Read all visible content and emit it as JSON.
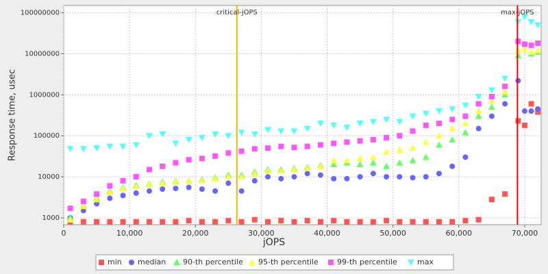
{
  "chart_data": {
    "type": "scatter",
    "xlabel": "jOPS",
    "ylabel": "Response time, usec",
    "log_y": true,
    "grid": true,
    "legend": "bottom",
    "x": [
      1000,
      3000,
      5000,
      7000,
      9000,
      11000,
      13000,
      15000,
      17000,
      19000,
      21000,
      23000,
      25000,
      27000,
      29000,
      31000,
      33000,
      35000,
      37000,
      39000,
      41000,
      43000,
      45000,
      47000,
      49000,
      51000,
      53000,
      55000,
      57000,
      59000,
      61000,
      63000,
      65000,
      67000,
      69000,
      70000,
      71000,
      72000
    ],
    "series": [
      {
        "name": "min",
        "color": "#ff5555",
        "marker": "square",
        "values": [
          800,
          800,
          800,
          800,
          800,
          800,
          800,
          800,
          800,
          850,
          800,
          800,
          850,
          800,
          900,
          800,
          850,
          800,
          850,
          800,
          850,
          800,
          800,
          800,
          850,
          800,
          800,
          800,
          800,
          800,
          850,
          900,
          2800,
          3800,
          230000,
          180000,
          600000,
          380000
        ]
      },
      {
        "name": "median",
        "color": "#6666ff",
        "marker": "circle",
        "values": [
          1000,
          1500,
          2200,
          3000,
          3500,
          4000,
          4500,
          5000,
          5200,
          5500,
          5000,
          4500,
          7000,
          4500,
          8000,
          10000,
          9000,
          10000,
          12000,
          11000,
          9000,
          9000,
          10000,
          12000,
          10000,
          10000,
          9500,
          10000,
          12000,
          18000,
          30000,
          150000,
          300000,
          600000,
          2200000,
          400000,
          400000,
          450000
        ]
      },
      {
        "name": "90-th percentile",
        "color": "#66ff66",
        "marker": "triangle",
        "values": [
          1000,
          2000,
          3000,
          4500,
          5500,
          6200,
          6800,
          7500,
          7800,
          8000,
          8500,
          9500,
          11000,
          11000,
          13000,
          15000,
          15000,
          16000,
          17000,
          19000,
          20000,
          22000,
          20000,
          22000,
          18000,
          22000,
          25000,
          30000,
          60000,
          80000,
          120000,
          300000,
          500000,
          1000000,
          9000000,
          13000000,
          10000000,
          11000000
        ]
      },
      {
        "name": "95-th percentile",
        "color": "#ffff44",
        "marker": "triangle",
        "values": [
          900,
          1900,
          2800,
          4200,
          5200,
          5800,
          6500,
          7000,
          7500,
          7800,
          8000,
          9000,
          10000,
          10000,
          12000,
          14000,
          14000,
          15000,
          16000,
          18000,
          25000,
          25000,
          28000,
          30000,
          40000,
          45000,
          50000,
          70000,
          100000,
          150000,
          200000,
          400000,
          700000,
          1200000,
          12000000,
          13000000,
          11000000,
          12000000
        ]
      },
      {
        "name": "99-th percentile",
        "color": "#ff55ff",
        "marker": "square",
        "values": [
          1700,
          2500,
          3800,
          6000,
          8000,
          10000,
          15000,
          18000,
          22000,
          26000,
          28000,
          32000,
          38000,
          42000,
          48000,
          50000,
          55000,
          52000,
          55000,
          60000,
          65000,
          70000,
          75000,
          80000,
          90000,
          100000,
          130000,
          180000,
          200000,
          250000,
          300000,
          600000,
          900000,
          1600000,
          20000000,
          17000000,
          16000000,
          18000000
        ]
      },
      {
        "name": "max",
        "color": "#55ffff",
        "marker": "triangle-down",
        "values": [
          48000,
          48000,
          50000,
          55000,
          55000,
          60000,
          100000,
          110000,
          65000,
          80000,
          90000,
          110000,
          100000,
          120000,
          110000,
          140000,
          130000,
          130000,
          150000,
          200000,
          180000,
          160000,
          200000,
          220000,
          250000,
          220000,
          300000,
          350000,
          400000,
          450000,
          550000,
          900000,
          1300000,
          2500000,
          60000000,
          80000000,
          60000000,
          50000000
        ]
      }
    ],
    "annotations": [
      {
        "label": "critical-jOPS",
        "x": 26300,
        "color": "#ffb400"
      },
      {
        "label": "max-jOPS",
        "x": 68900,
        "color": "#ee0000"
      }
    ],
    "xlim": [
      0,
      72500
    ],
    "xticks": [
      0,
      {
        "value": 10000,
        "label": "10,000"
      },
      {
        "value": 20000,
        "label": "20,000"
      },
      {
        "value": 30000,
        "label": "30,000"
      },
      {
        "value": 40000,
        "label": "40,000"
      },
      {
        "value": 50000,
        "label": "50,000"
      },
      {
        "value": 60000,
        "label": "60,000"
      },
      {
        "value": 70000,
        "label": "70,000"
      }
    ],
    "ylim": [
      680,
      150000000
    ],
    "yticks": [
      1000,
      10000,
      100000,
      1000000,
      10000000,
      100000000
    ]
  }
}
